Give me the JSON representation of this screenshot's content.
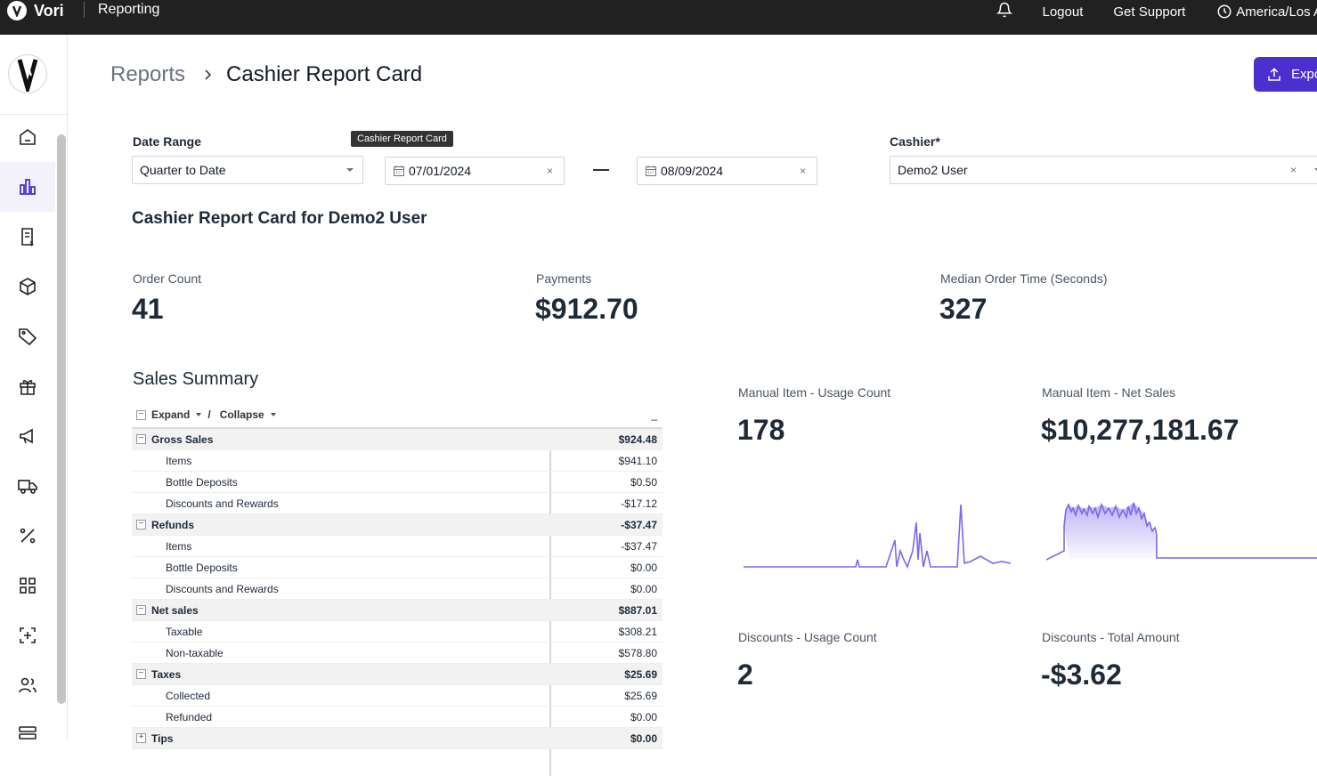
{
  "topbar": {
    "brand": "Vori",
    "app_title": "Reporting",
    "links": [
      "Logout",
      "Get Support"
    ],
    "timezone": "America/Los A"
  },
  "sidebar": {
    "items": [
      {
        "name": "home",
        "icon": "home-icon"
      },
      {
        "name": "reports",
        "icon": "bar-chart-icon",
        "active": true
      },
      {
        "name": "invoices",
        "icon": "receipt-dollar-icon"
      },
      {
        "name": "products",
        "icon": "box-icon"
      },
      {
        "name": "pricing",
        "icon": "tag-icon"
      },
      {
        "name": "gifts",
        "icon": "gift-icon"
      },
      {
        "name": "marketing",
        "icon": "megaphone-icon"
      },
      {
        "name": "vendors",
        "icon": "truck-icon"
      },
      {
        "name": "promotions",
        "icon": "percent-icon"
      },
      {
        "name": "apps",
        "icon": "grid-icon"
      },
      {
        "name": "scan",
        "icon": "scan-plus-icon"
      },
      {
        "name": "users",
        "icon": "users-icon"
      },
      {
        "name": "settings",
        "icon": "sliders-icon"
      }
    ]
  },
  "breadcrumb": {
    "root": "Reports",
    "current": "Cashier Report Card"
  },
  "export_label": "Expo",
  "filters": {
    "date_range_label": "Date Range",
    "date_range_value": "Quarter to Date",
    "start_date": "07/01/2024",
    "end_date": "08/09/2024",
    "cashier_label": "Cashier",
    "cashier_required": "*",
    "cashier_value": "Demo2 User",
    "clear_glyph": "×"
  },
  "tooltip": "Cashier Report Card",
  "report_title": "Cashier Report Card for Demo2 User",
  "stats": {
    "order_count_label": "Order Count",
    "order_count": "41",
    "payments_label": "Payments",
    "payments": "$912.70",
    "median_label": "Median Order Time (Seconds)",
    "median": "327"
  },
  "sales_summary": {
    "title": "Sales Summary",
    "expand_label": "Expand",
    "slash": "/",
    "collapse_label": "Collapse",
    "col_header": "_",
    "rows": [
      {
        "name": "Gross Sales",
        "value": "$924.48",
        "group": true
      },
      {
        "name": "Items",
        "value": "$941.10"
      },
      {
        "name": "Bottle Deposits",
        "value": "$0.50"
      },
      {
        "name": "Discounts and Rewards",
        "value": "-$17.12"
      },
      {
        "name": "Refunds",
        "value": "-$37.47",
        "group": true
      },
      {
        "name": "Items",
        "value": "-$37.47"
      },
      {
        "name": "Bottle Deposits",
        "value": "$0.00"
      },
      {
        "name": "Discounts and Rewards",
        "value": "$0.00"
      },
      {
        "name": "Net sales",
        "value": "$887.01",
        "group": true
      },
      {
        "name": "Taxable",
        "value": "$308.21"
      },
      {
        "name": "Non-taxable",
        "value": "$578.80"
      },
      {
        "name": "Taxes",
        "value": "$25.69",
        "group": true
      },
      {
        "name": "Collected",
        "value": "$25.69"
      },
      {
        "name": "Refunded",
        "value": "$0.00"
      },
      {
        "name": "Tips",
        "value": "$0.00",
        "group": true,
        "collapsed": true
      }
    ]
  },
  "cards": {
    "manual_usage_label": "Manual Item - Usage Count",
    "manual_usage_value": "178",
    "manual_sales_label": "Manual Item - Net Sales",
    "manual_sales_value": "$10,277,181.67",
    "discount_usage_label": "Discounts - Usage Count",
    "discount_usage_value": "2",
    "discount_total_label": "Discounts - Total Amount",
    "discount_total_value": "-$3.62"
  },
  "colors": {
    "accent": "#4c2fcf",
    "spark": "#7b68ee",
    "topbar": "#212121"
  }
}
